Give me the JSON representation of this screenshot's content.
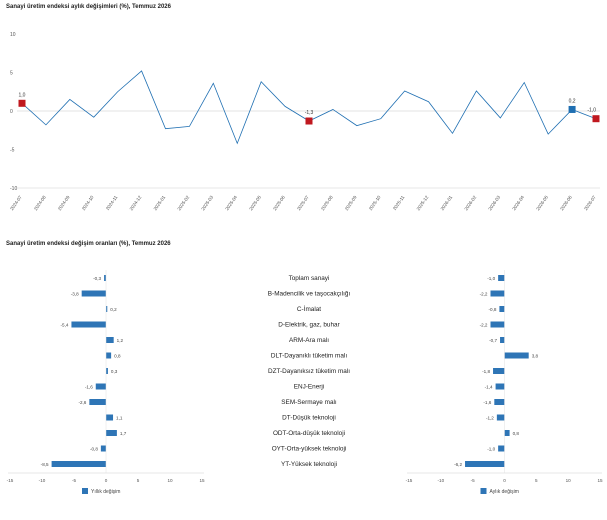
{
  "chart_data": [
    {
      "type": "line",
      "title": "Sanayi üretim endeksi aylık değişimleri (%), Temmuz 2026",
      "xlabel": "",
      "ylabel": "",
      "ylim": [
        -10,
        10
      ],
      "yticks": [
        -10,
        -5,
        0,
        5,
        10
      ],
      "grid": false,
      "color": "#1f6fb2",
      "marker_color": "#c0181f",
      "x": [
        "2024-07",
        "2024-08",
        "2024-09",
        "2024-10",
        "2024-11",
        "2024-12",
        "2025-01",
        "2025-02",
        "2025-03",
        "2025-04",
        "2025-05",
        "2025-06",
        "2025-07",
        "2025-08",
        "2025-09",
        "2025-10",
        "2025-11",
        "2025-12",
        "2026-01",
        "2026-02",
        "2026-03",
        "2026-04",
        "2026-05",
        "2026-06",
        "2026-07"
      ],
      "series": [
        {
          "values": [
            1.0,
            -1.8,
            1.5,
            -0.8,
            2.5,
            5.2,
            -2.3,
            -2.0,
            3.6,
            -4.2,
            3.8,
            0.6,
            -1.3,
            0.2,
            -1.9,
            -1.0,
            2.6,
            1.2,
            -2.9,
            2.6,
            -0.9,
            3.7,
            -3.0,
            0.2,
            -1.0
          ]
        }
      ],
      "data_labels": [
        {
          "index": 0,
          "label": "1,0"
        },
        {
          "index": 12,
          "label": "-1,3"
        },
        {
          "index": 23,
          "label": "0,2"
        },
        {
          "index": 24,
          "label": "-1,0"
        }
      ]
    },
    {
      "type": "bar",
      "title": "Sanayi üretim endeksi değişim oranları (%), Temmuz 2026",
      "orientation": "horizontal",
      "categories": [
        "Toplam sanayi",
        "B-Madencilik ve taşocakçılığı",
        "C-İmalat",
        "D-Elektrik, gaz, buhar",
        "ARM-Ara malı",
        "DLT-Dayanıklı tüketim malı",
        "DZT-Dayanıksız tüketim malı",
        "ENJ-Enerji",
        "SEM-Sermaye malı",
        "DT-Düşük teknoloji",
        "ODT-Orta-düşük teknoloji",
        "OYT-Orta-yüksek teknoloji",
        "YT-Yüksek teknoloji"
      ],
      "xlim": [
        -15,
        15
      ],
      "xticks": [
        -15,
        -10,
        -5,
        0,
        5,
        10,
        15
      ],
      "color": "#2e75b6",
      "series": [
        {
          "name": "Yıllık değişim",
          "values": [
            -0.3,
            -3.8,
            0.2,
            -5.4,
            1.2,
            0.8,
            0.3,
            -1.6,
            -2.6,
            1.1,
            1.7,
            -0.8,
            -8.5
          ],
          "labels": [
            "-0,3",
            "-3,8",
            "0,2",
            "-5,4",
            "1,2",
            "0,8",
            "0,3",
            "-1,6",
            "-2,6",
            "1,1",
            "1,7",
            "-0,8",
            "-8,5"
          ]
        },
        {
          "name": "Aylık değişim",
          "values": [
            -1.0,
            -2.2,
            -0.8,
            -2.2,
            -0.7,
            3.8,
            -1.8,
            -1.4,
            -1.6,
            -1.2,
            0.8,
            -1.0,
            -6.2
          ],
          "labels": [
            "-1,0",
            "-2,2",
            "-0,8",
            "-2,2",
            "-0,7",
            "3,8",
            "-1,8",
            "-1,4",
            "-1,6",
            "-1,2",
            "0,8",
            "-1,0",
            "-6,2"
          ]
        }
      ]
    }
  ]
}
